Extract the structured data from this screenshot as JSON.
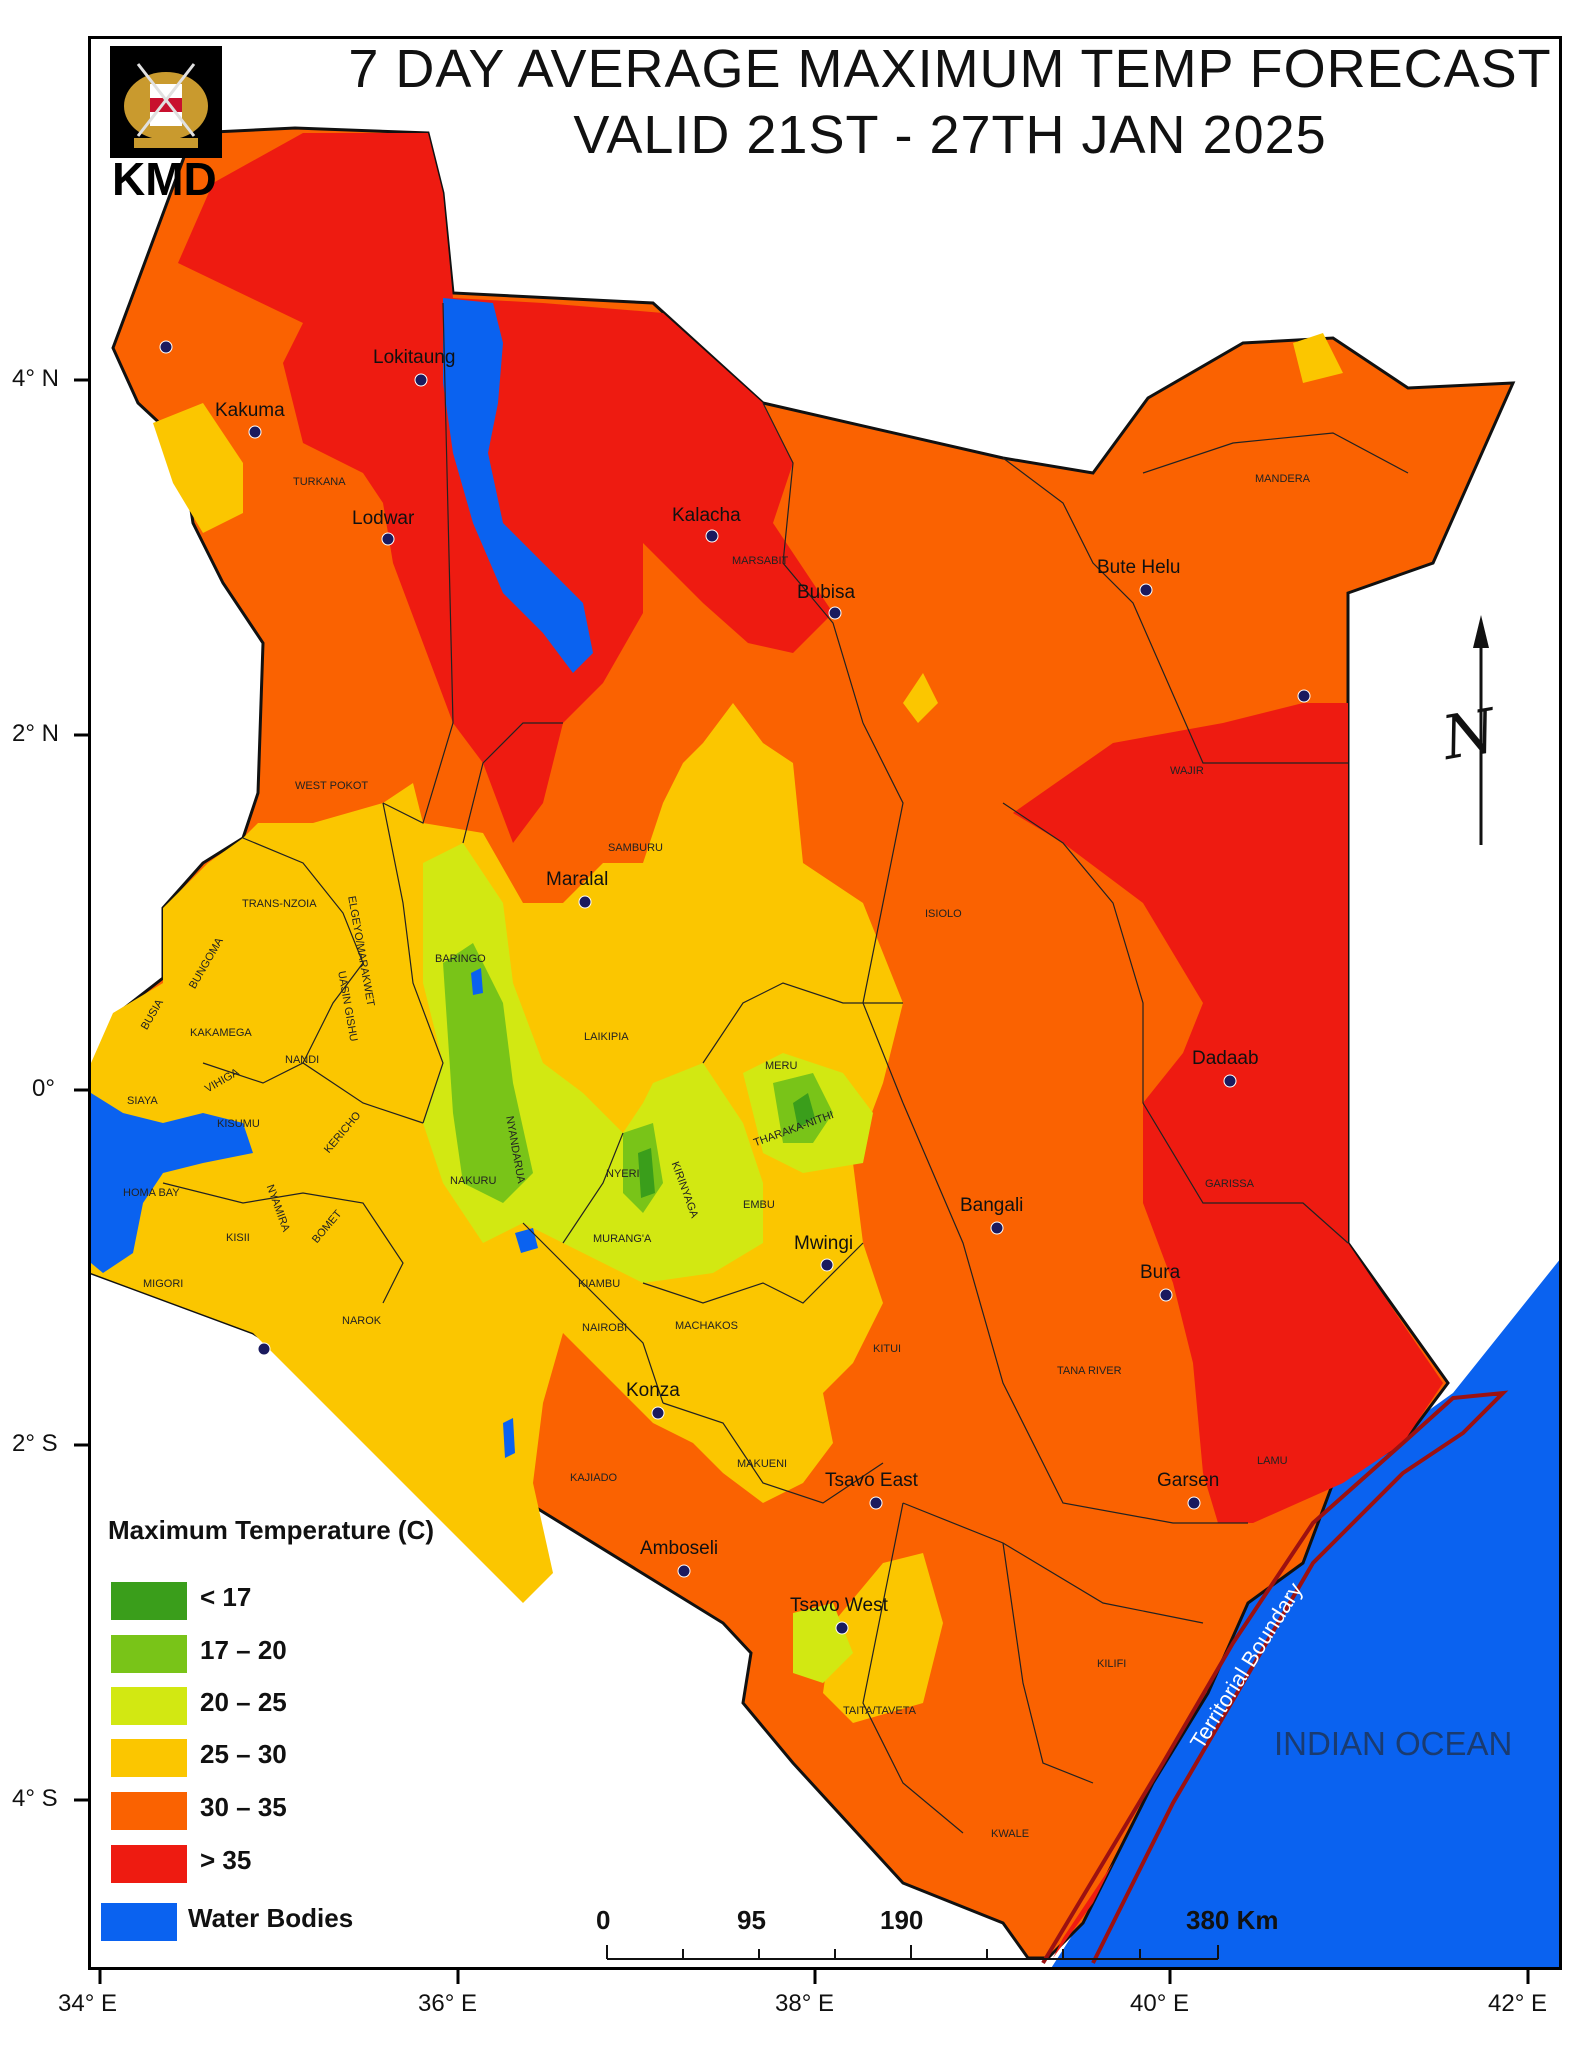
{
  "title_line1": "7 DAY AVERAGE MAXIMUM TEMP FORECAST",
  "title_line2": "VALID 21ST - 27TH JAN  2025",
  "logo": {
    "text": "KMD",
    "emblem": "kenya-coat-of-arms-icon"
  },
  "legend": {
    "title": "Maximum Temperature (C)",
    "items": [
      {
        "label": "< 17",
        "color": "#3a9e1b"
      },
      {
        "label": "17 – 20",
        "color": "#79c418"
      },
      {
        "label": "20 – 25",
        "color": "#d2e812"
      },
      {
        "label": "25 – 30",
        "color": "#fbc600"
      },
      {
        "label": "30 – 35",
        "color": "#fa6201"
      },
      {
        "label": "> 35",
        "color": "#ee1b11"
      },
      {
        "label": "Water Bodies",
        "color": "#0a62f0"
      }
    ]
  },
  "scale_bar": {
    "labels": [
      "0",
      "95",
      "190",
      "380 Km"
    ]
  },
  "axes": {
    "latitude_ticks": [
      "4° N",
      "2° N",
      "0°",
      "2° S",
      "4° S"
    ],
    "longitude_ticks": [
      "34° E",
      "36° E",
      "38° E",
      "40° E",
      "42° E"
    ]
  },
  "places": [
    "Lokitaung",
    "Kakuma",
    "Lodwar",
    "Kalacha",
    "Bubisa",
    "Bute Helu",
    "Maralal",
    "Dadaab",
    "Bangali",
    "Mwingi",
    "Bura",
    "Konza",
    "Tsavo East",
    "Garsen",
    "Amboseli",
    "Tsavo West"
  ],
  "counties": [
    "TURKANA",
    "MARSABIT",
    "MANDERA",
    "WAJIR",
    "WEST POKOT",
    "SAMBURU",
    "TRANS-NZOIA",
    "ELGEYO/MARAKWET",
    "BUNGOMA",
    "UASIN GISHU",
    "BARINGO",
    "ISIOLO",
    "BUSIA",
    "KAKAMEGA",
    "NANDI",
    "LAIKIPIA",
    "SIAYA",
    "VIHIGA",
    "KISUMU",
    "MERU",
    "KERICHO",
    "NYANDARUA",
    "THARAKA-NITHI",
    "NAKURU",
    "NYERI",
    "HOMA BAY",
    "KIRINYAGA",
    "GARISSA",
    "EMBU",
    "NYAMIRA",
    "BOMET",
    "KISII",
    "MURANG'A",
    "MIGORI",
    "KIAMBU",
    "NAROK",
    "NAIROBI",
    "MACHAKOS",
    "KITUI",
    "TANA RIVER",
    "MAKUENI",
    "LAMU",
    "KAJIADO",
    "KILIFI",
    "TAITA/TAVETA",
    "KWALE"
  ],
  "ocean_label": "INDIAN OCEAN",
  "boundary_label": "Territorial Boundary",
  "north_arrow": {
    "letter": "N",
    "icon": "north-arrow-icon"
  }
}
